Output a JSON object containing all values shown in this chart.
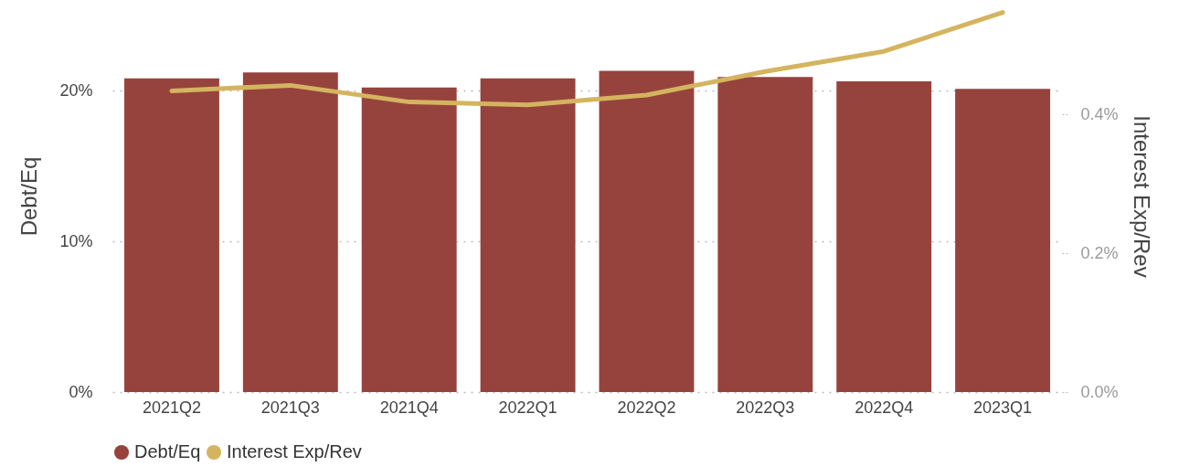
{
  "chart_data": {
    "type": "bar",
    "categories": [
      "2021Q2",
      "2021Q3",
      "2021Q4",
      "2022Q1",
      "2022Q2",
      "2022Q3",
      "2022Q4",
      "2023Q1"
    ],
    "ylabel": "Debt/Eq",
    "y2label": "Interest Exp/Rev",
    "series": [
      {
        "name": "Debt/Eq",
        "color": "#96433d",
        "values": [
          20.8,
          21.2,
          20.2,
          20.8,
          21.3,
          20.9,
          20.6,
          20.1
        ]
      },
      {
        "name": "Interest Exp/Rev",
        "type": "line",
        "axis": "y2",
        "color": "#d4b45f",
        "values": [
          0.434,
          0.442,
          0.418,
          0.414,
          0.428,
          0.462,
          0.491,
          0.547
        ]
      }
    ],
    "ylim": [
      0,
      26
    ],
    "yticks": [
      {
        "value": 0,
        "label": "0%"
      },
      {
        "value": 10,
        "label": "10%"
      },
      {
        "value": 20,
        "label": "20%"
      }
    ],
    "y2lim": [
      0,
      0.565
    ],
    "y2ticks": [
      {
        "value": 0,
        "label": "0.0%"
      },
      {
        "value": 0.2,
        "label": "0.2%"
      },
      {
        "value": 0.4,
        "label": "0.4%"
      }
    ],
    "grid": "y",
    "legend": "bottom left"
  }
}
